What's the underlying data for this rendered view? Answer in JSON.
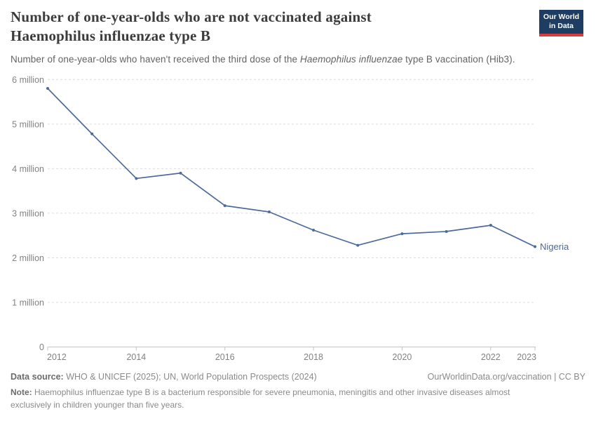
{
  "header": {
    "title_line1": "Number of one-year-olds who are not vaccinated against",
    "title_line2": "Haemophilus influenzae type B",
    "subtitle_pre": "Number of one-year-olds who haven't received the third dose of the ",
    "subtitle_italic": "Haemophilus influenzae",
    "subtitle_post": " type B vaccination (Hib3)."
  },
  "logo": {
    "line1": "Our World",
    "line2": "in Data",
    "bg_color": "#1d3d63",
    "accent_color": "#dc3b3b"
  },
  "chart_data": {
    "type": "line",
    "title": "Number of one-year-olds who are not vaccinated against Haemophilus influenzae type B",
    "xlabel": "",
    "ylabel": "",
    "x": [
      2012,
      2013,
      2014,
      2015,
      2016,
      2017,
      2018,
      2019,
      2020,
      2021,
      2022,
      2023
    ],
    "series": [
      {
        "name": "Nigeria",
        "color": "#4C6A9C",
        "values": [
          5800000,
          4780000,
          3780000,
          3900000,
          3170000,
          3030000,
          2620000,
          2280000,
          2540000,
          2590000,
          2730000,
          2250000
        ]
      }
    ],
    "xlim": [
      2012,
      2023
    ],
    "ylim": [
      0,
      6000000
    ],
    "x_ticks": [
      {
        "value": 2012,
        "label": "2012"
      },
      {
        "value": 2014,
        "label": "2014"
      },
      {
        "value": 2016,
        "label": "2016"
      },
      {
        "value": 2018,
        "label": "2018"
      },
      {
        "value": 2020,
        "label": "2020"
      },
      {
        "value": 2022,
        "label": "2022"
      },
      {
        "value": 2023,
        "label": "2023"
      }
    ],
    "y_ticks": [
      {
        "value": 0,
        "label": "0"
      },
      {
        "value": 1000000,
        "label": "1 million"
      },
      {
        "value": 2000000,
        "label": "2 million"
      },
      {
        "value": 3000000,
        "label": "3 million"
      },
      {
        "value": 4000000,
        "label": "4 million"
      },
      {
        "value": 5000000,
        "label": "5 million"
      },
      {
        "value": 6000000,
        "label": "6 million"
      }
    ],
    "grid": "horizontal-dashed",
    "legend_position": "end-of-line-label",
    "end_label": "Nigeria",
    "axis_color": "#c4c4c4",
    "gridline_color": "#dcdcdc",
    "tick_label_color": "#828282"
  },
  "footer": {
    "source_label": "Data source:",
    "source_text": "WHO & UNICEF (2025); UN, World Population Prospects (2024)",
    "attribution": "OurWorldinData.org/vaccination | CC BY",
    "note_label": "Note:",
    "note_line1": "Haemophilus influenzae type B is a bacterium responsible for severe pneumonia, meningitis and other invasive diseases almost",
    "note_line2": "exclusively in children younger than five years."
  }
}
